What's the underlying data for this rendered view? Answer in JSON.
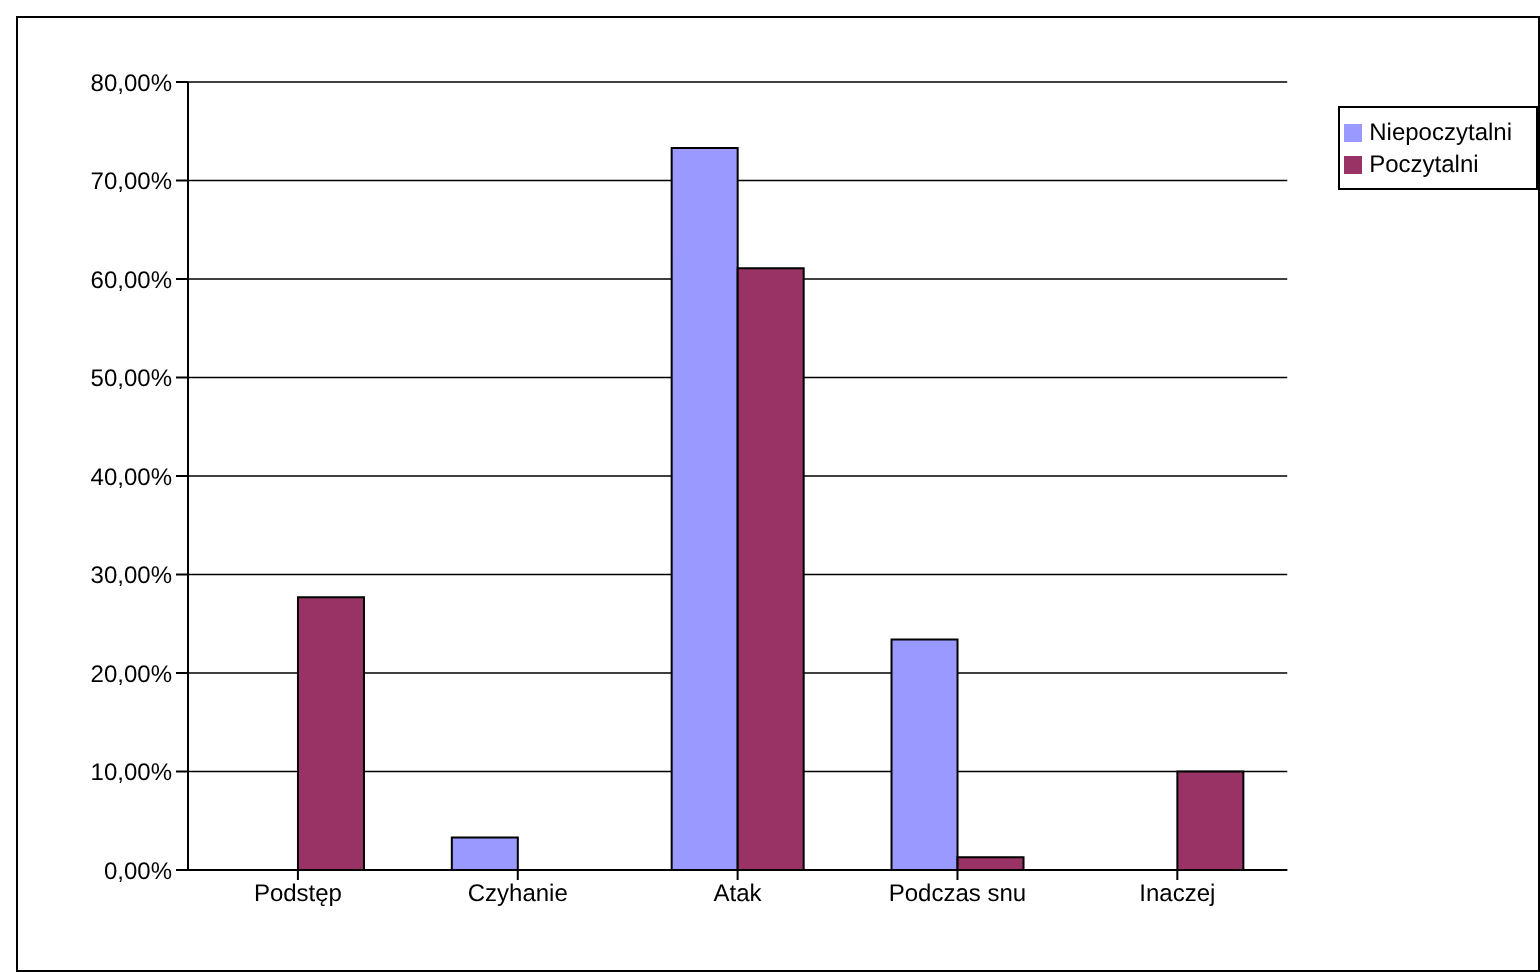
{
  "chart_data": {
    "type": "bar",
    "categories": [
      "Podstęp",
      "Czyhanie",
      "Atak",
      "Podczas snu",
      "Inaczej"
    ],
    "series": [
      {
        "name": "Niepoczytalni",
        "color": "#9999ff",
        "values": [
          0,
          3.3,
          73.3,
          23.4,
          0
        ]
      },
      {
        "name": "Poczytalni",
        "color": "#993366",
        "values": [
          27.7,
          0,
          61.1,
          1.3,
          10.0
        ]
      }
    ],
    "ylim": [
      0,
      80
    ],
    "yticks": [
      {
        "value": 0,
        "label": "0,00%"
      },
      {
        "value": 10,
        "label": "10,00%"
      },
      {
        "value": 20,
        "label": "20,00%"
      },
      {
        "value": 30,
        "label": "30,00%"
      },
      {
        "value": 40,
        "label": "40,00%"
      },
      {
        "value": 50,
        "label": "50,00%"
      },
      {
        "value": 60,
        "label": "60,00%"
      },
      {
        "value": 70,
        "label": "70,00%"
      },
      {
        "value": 80,
        "label": "80,00%"
      }
    ],
    "grid": "y",
    "legend": "top right"
  }
}
